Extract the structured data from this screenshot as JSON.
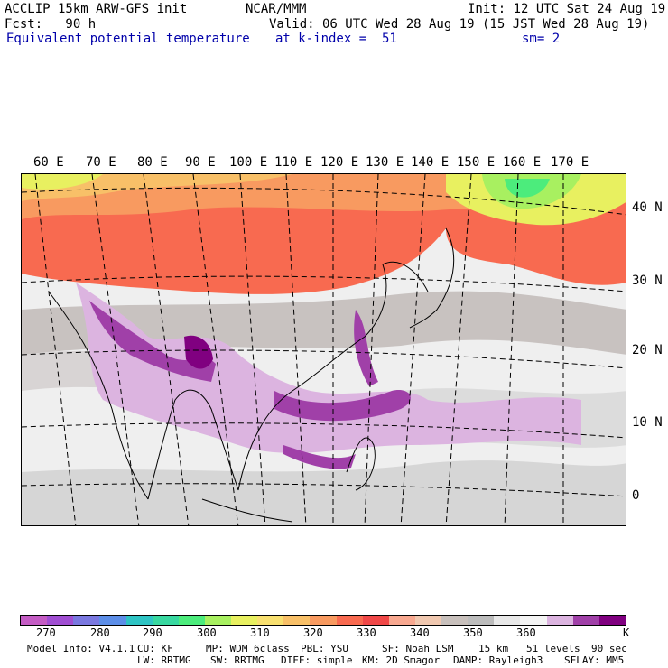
{
  "header": {
    "line1_left": "ACCLIP 15km ARW-GFS init",
    "line1_center": "NCAR/MMM",
    "line1_right": "Init: 12 UTC Sat 24 Aug 19",
    "line2_left": "Fcst:   90 h",
    "line2_right": "Valid: 06 UTC Wed 28 Aug 19 (15 JST Wed 28 Aug 19)",
    "line3_left": "Equivalent potential temperature",
    "line3_center": "at k-index =  51",
    "line3_right": "sm= 2"
  },
  "map": {
    "lon_labels": [
      "60 E",
      "70 E",
      "80 E",
      "90 E",
      "100 E",
      "110 E",
      "120 E",
      "130 E",
      "140 E",
      "150 E",
      "160 E",
      "170 E"
    ],
    "lat_labels": [
      "40 N",
      "30 N",
      "20 N",
      "10 N",
      "0"
    ]
  },
  "colorbar": {
    "colors": [
      "#c45cc4",
      "#a04ed2",
      "#7a78e0",
      "#5c8ee8",
      "#2ec4c4",
      "#38d8a0",
      "#4cec7c",
      "#a8f060",
      "#e8f060",
      "#f8e070",
      "#f8c068",
      "#f89a60",
      "#f86a50",
      "#f04848",
      "#f8a890",
      "#f0c8b0",
      "#c8c0bc",
      "#bcbcbc",
      "#e8e8e8",
      "#f4f4f4",
      "#dcb4e0",
      "#a040a8",
      "#800080"
    ],
    "labels": [
      "270",
      "280",
      "290",
      "300",
      "310",
      "320",
      "330",
      "340",
      "350",
      "360",
      "K"
    ]
  },
  "footer": {
    "line1": [
      "Model Info: V4.1.1",
      "CU: KF",
      "MP: WDM 6class",
      "PBL: YSU",
      "SF: Noah LSM",
      "15 km",
      "51 levels",
      "90 sec"
    ],
    "line2": [
      "LW: RRTMG",
      "SW: RRTMG",
      "DIFF: simple",
      "KM: 2D Smagor",
      "DAMP: Rayleigh3",
      "SFLAY: MM5"
    ]
  }
}
